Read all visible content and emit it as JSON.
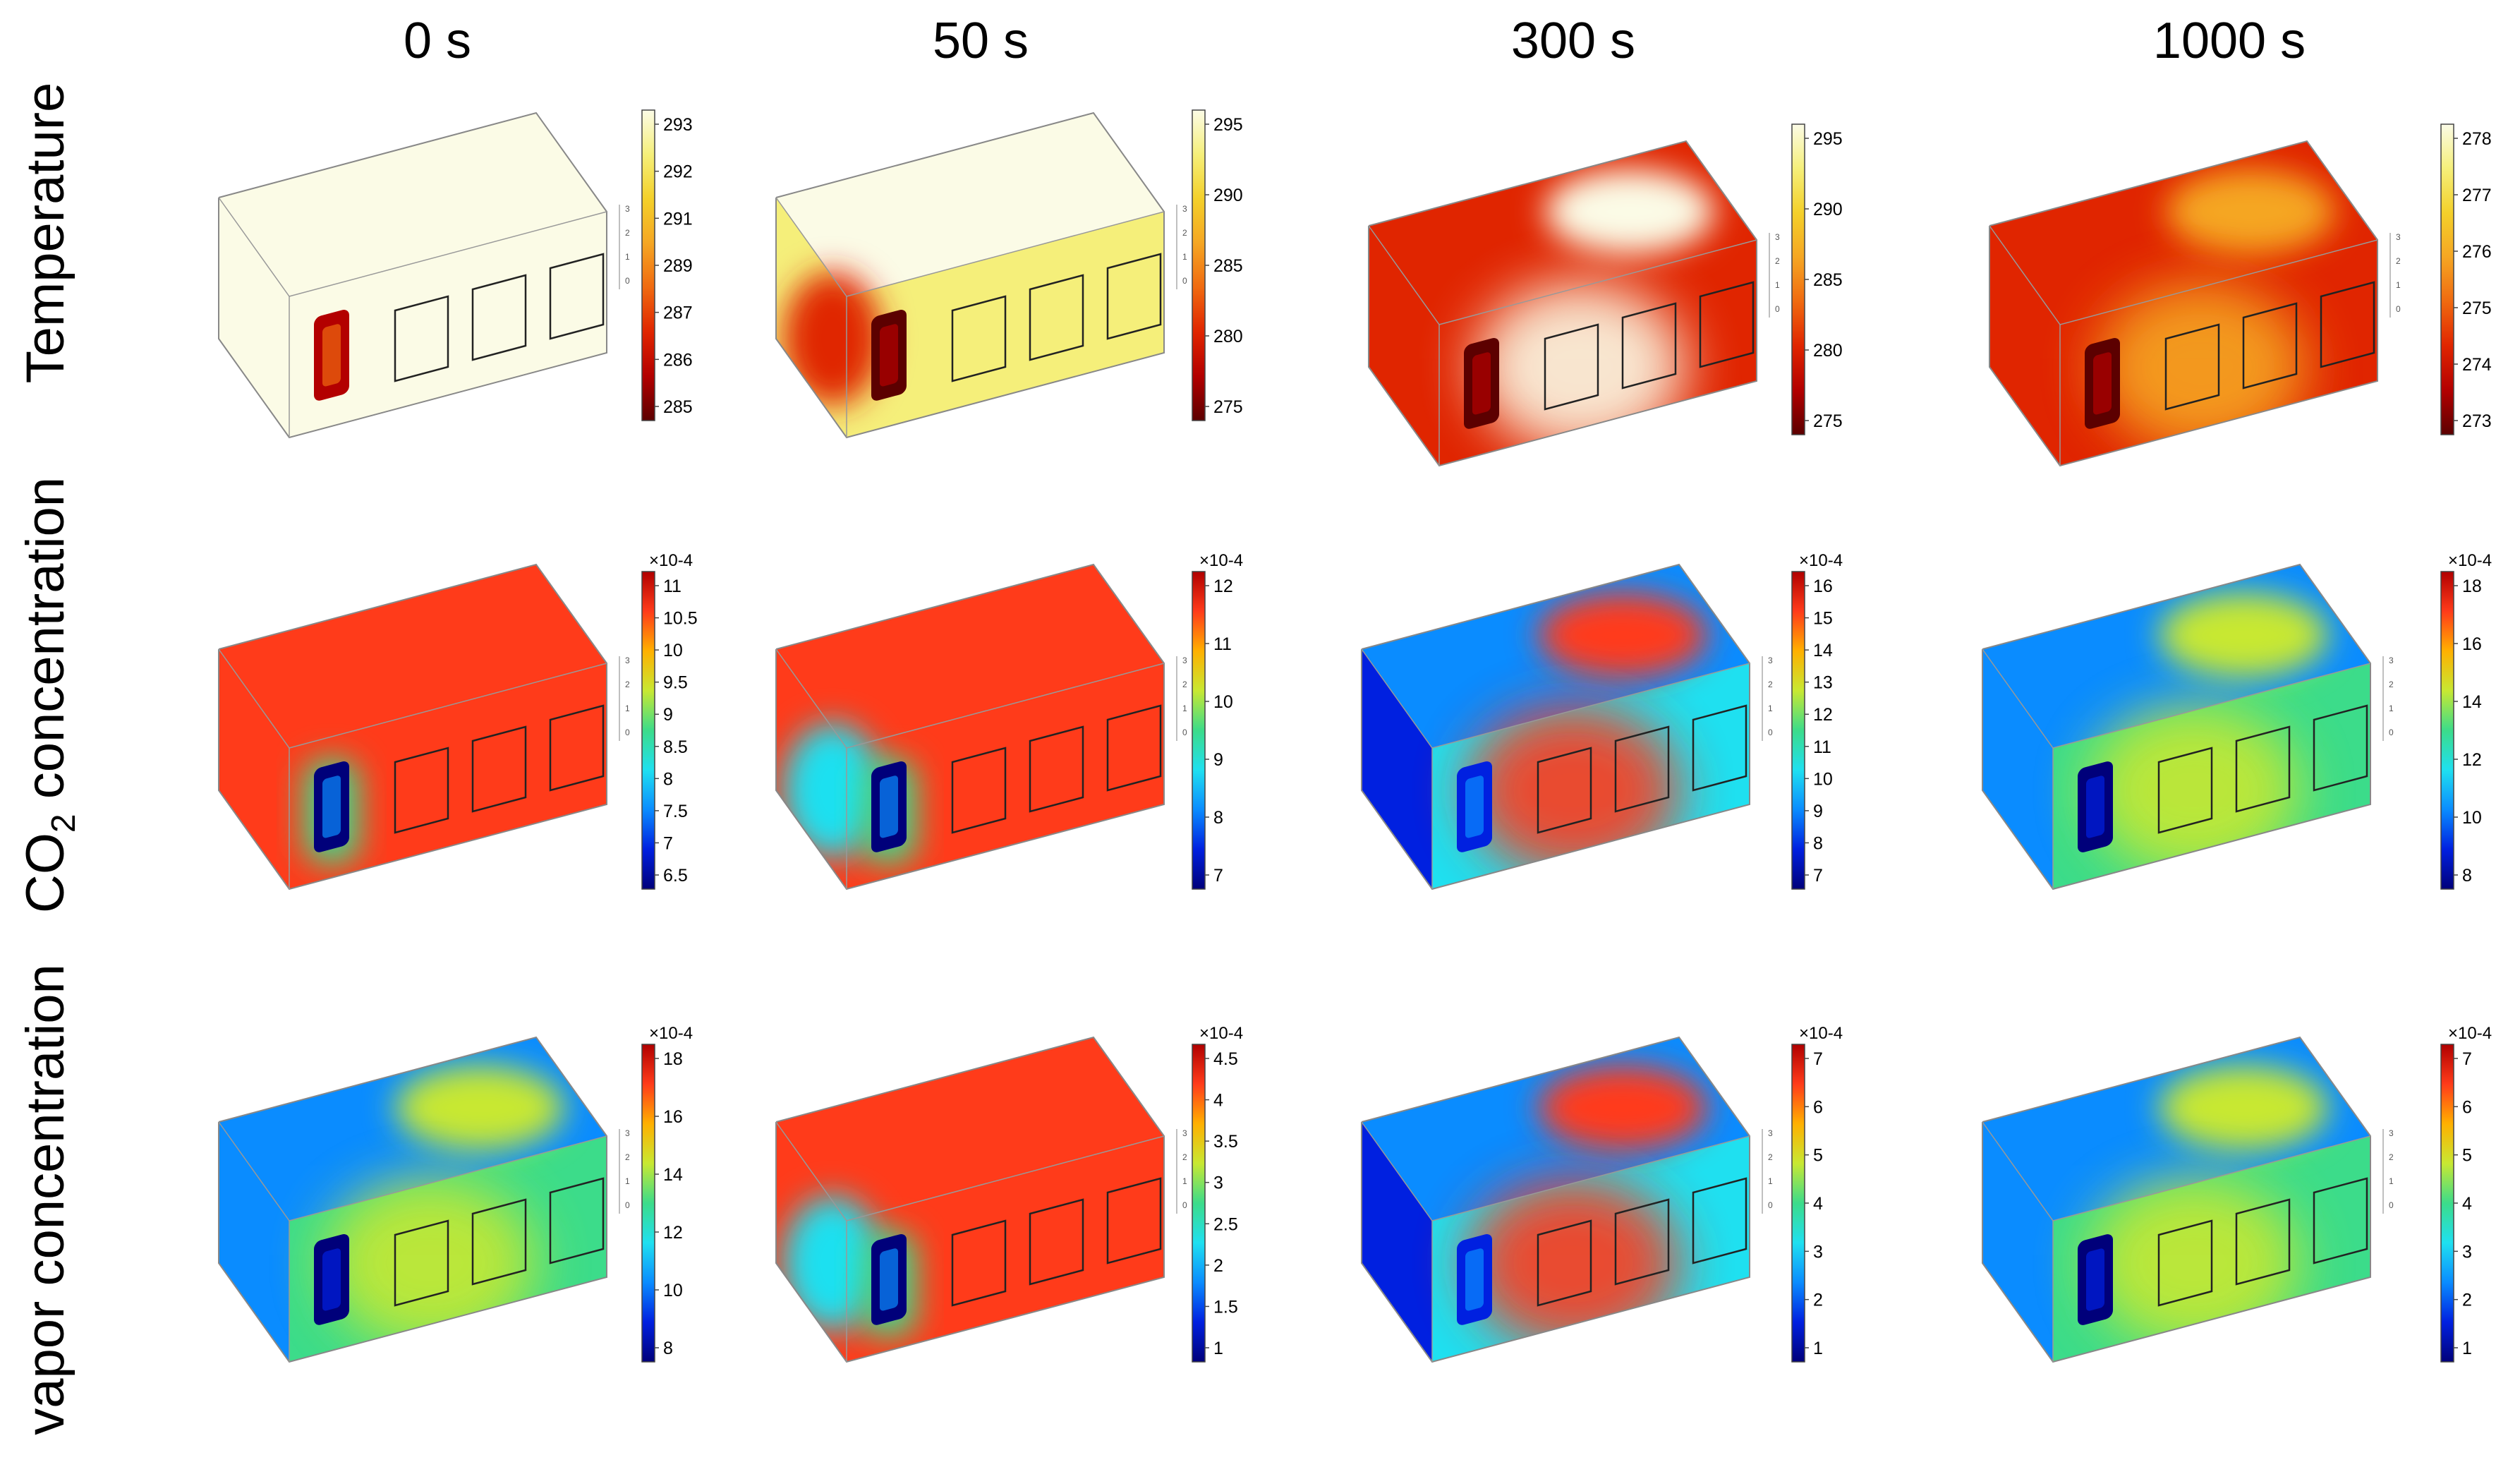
{
  "columns": [
    "0 s",
    "50 s",
    "300 s",
    "1000 s"
  ],
  "rows": [
    {
      "label": "Temperature"
    },
    {
      "label_main": "CO",
      "label_sub": "2",
      "label_tail": " concentration"
    },
    {
      "label": "vapor concentration"
    }
  ],
  "box_axis_ticks": [
    "0",
    "1",
    "2",
    "3"
  ],
  "colormaps": {
    "temperature": [
      "#5c0000",
      "#b30000",
      "#e02500",
      "#f06a10",
      "#f5a623",
      "#f4d02a",
      "#f5ef7a",
      "#fbfbe6"
    ],
    "concentration": [
      "#00007a",
      "#0020e0",
      "#0a8cff",
      "#1fe0f0",
      "#3cdc8a",
      "#c8e832",
      "#ffb000",
      "#ff3b1a",
      "#b00000"
    ]
  },
  "panels": [
    [
      {
        "id": "temp-0s",
        "scale": "temperature",
        "exponent": "",
        "ticks": [
          "293",
          "292",
          "291",
          "289",
          "287",
          "286",
          "285"
        ],
        "state": "uniform_warm"
      },
      {
        "id": "temp-50s",
        "scale": "temperature",
        "exponent": "",
        "ticks": [
          "295",
          "290",
          "285",
          "280",
          "275"
        ],
        "state": "cold_door"
      },
      {
        "id": "temp-300s",
        "scale": "temperature",
        "exponent": "",
        "ticks": [
          "295",
          "290",
          "285",
          "280",
          "275"
        ],
        "state": "cold_plume"
      },
      {
        "id": "temp-1000s",
        "scale": "temperature",
        "exponent": "",
        "ticks": [
          "278",
          "277",
          "276",
          "275",
          "274",
          "273"
        ],
        "state": "cold_full"
      }
    ],
    [
      {
        "id": "co2-0s",
        "scale": "concentration",
        "exponent": "×10-4",
        "ticks": [
          "11",
          "10.5",
          "10",
          "9.5",
          "9",
          "8.5",
          "8",
          "7.5",
          "7",
          "6.5"
        ],
        "state": "high_door"
      },
      {
        "id": "co2-50s",
        "scale": "concentration",
        "exponent": "×10-4",
        "ticks": [
          "12",
          "11",
          "10",
          "9",
          "8",
          "7"
        ],
        "state": "high_door_spread"
      },
      {
        "id": "co2-300s",
        "scale": "concentration",
        "exponent": "×10-4",
        "ticks": [
          "16",
          "15",
          "14",
          "13",
          "12",
          "11",
          "10",
          "9",
          "8",
          "7"
        ],
        "state": "low_plume"
      },
      {
        "id": "co2-1000s",
        "scale": "concentration",
        "exponent": "×10-4",
        "ticks": [
          "18",
          "16",
          "14",
          "12",
          "10",
          "8"
        ],
        "state": "low_mixed"
      }
    ],
    [
      {
        "id": "vap-0s",
        "scale": "concentration",
        "exponent": "×10-4",
        "ticks": [
          "18",
          "16",
          "14",
          "12",
          "10",
          "8"
        ],
        "state": "low_mixed"
      },
      {
        "id": "vap-50s",
        "scale": "concentration",
        "exponent": "×10-4",
        "ticks": [
          "4.5",
          "4",
          "3.5",
          "3",
          "2.5",
          "2",
          "1.5",
          "1"
        ],
        "state": "high_door_spread"
      },
      {
        "id": "vap-300s",
        "scale": "concentration",
        "exponent": "×10-4",
        "ticks": [
          "7",
          "6",
          "5",
          "4",
          "3",
          "2",
          "1"
        ],
        "state": "low_plume"
      },
      {
        "id": "vap-1000s",
        "scale": "concentration",
        "exponent": "×10-4",
        "ticks": [
          "7",
          "6",
          "5",
          "4",
          "3",
          "2",
          "1"
        ],
        "state": "low_mixed"
      }
    ]
  ]
}
